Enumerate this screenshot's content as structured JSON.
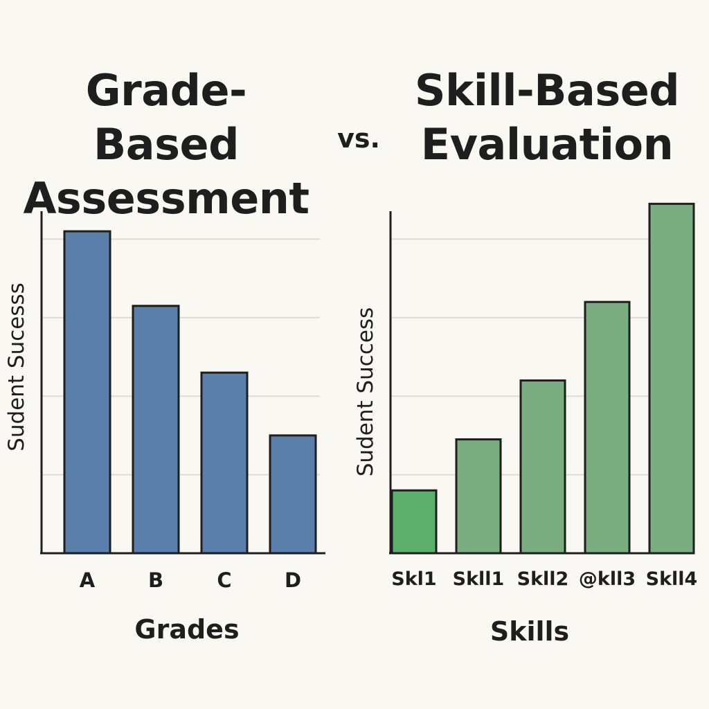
{
  "titles": {
    "left": "Grade-Based Assessment",
    "vs": "vs.",
    "right": "Skill-Based Evaluation"
  },
  "chart_data": [
    {
      "type": "bar",
      "title": "Grade-Based Assessment",
      "categories": [
        "A",
        "B",
        "C",
        "D"
      ],
      "values": [
        82,
        63,
        46,
        30
      ],
      "xlabel": "Grades",
      "ylabel": "Sudent Sucesss",
      "ylim": [
        0,
        100
      ],
      "grid": true,
      "color": "#5b7fab"
    },
    {
      "type": "bar",
      "title": "Skill-Based Evaluation",
      "categories": [
        "Skl1",
        "Skll1",
        "Skll2",
        "@kll3",
        "Skll4"
      ],
      "values": [
        16,
        29,
        44,
        64,
        89
      ],
      "xlabel": "Skills",
      "ylabel": "Sudent Success",
      "ylim": [
        0,
        100
      ],
      "grid": true,
      "color": "#7aad80",
      "first_bar_color": "#5cb06c"
    }
  ]
}
